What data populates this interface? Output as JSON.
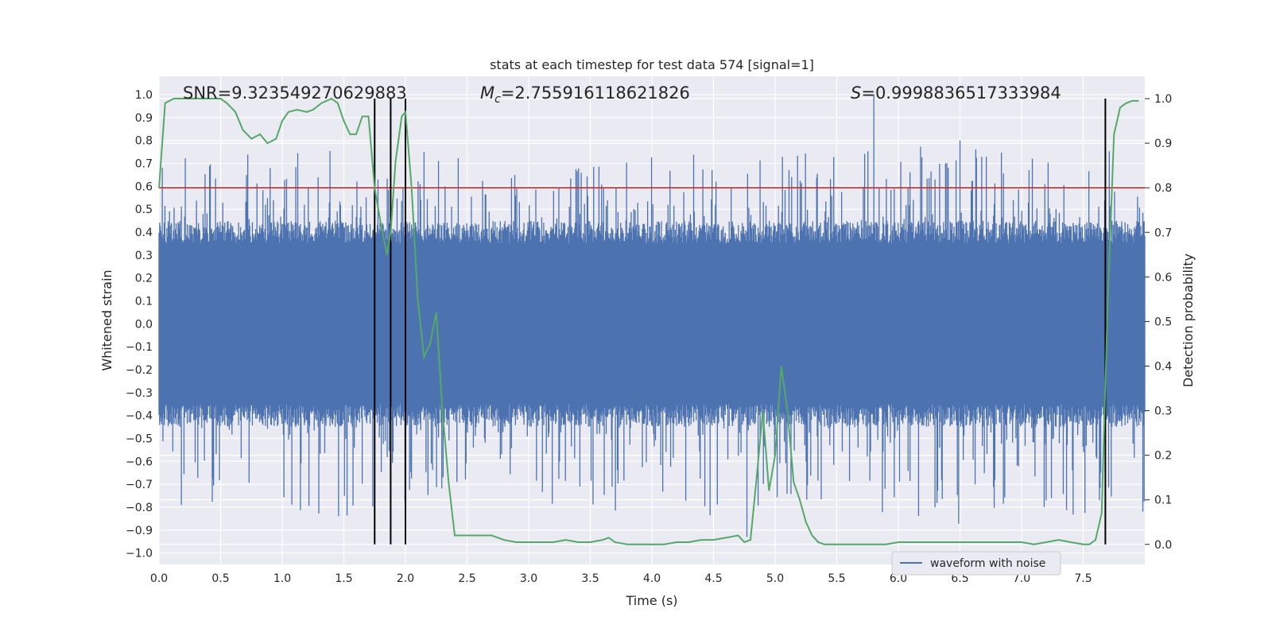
{
  "chart_data": {
    "type": "line",
    "title": "stats at each timestep for test data 574 [signal=1]",
    "xlabel": "Time (s)",
    "ylabel": "Whitened strain",
    "y2label": "Detection probability",
    "xlim": [
      0,
      8
    ],
    "ylim": [
      -1.05,
      1.08
    ],
    "y2lim": [
      -0.045,
      1.05
    ],
    "xticks": [
      "0.0",
      "0.5",
      "1.0",
      "1.5",
      "2.0",
      "2.5",
      "3.0",
      "3.5",
      "4.0",
      "4.5",
      "5.0",
      "5.5",
      "6.0",
      "6.5",
      "7.0",
      "7.5"
    ],
    "yticks": [
      "1.0",
      "0.9",
      "0.8",
      "0.7",
      "0.6",
      "0.5",
      "0.4",
      "0.3",
      "0.2",
      "0.1",
      "0.0",
      "−0.1",
      "−0.2",
      "−0.3",
      "−0.4",
      "−0.5",
      "−0.6",
      "−0.7",
      "−0.8",
      "−0.9",
      "−1.0"
    ],
    "y2ticks": [
      "1.0",
      "0.9",
      "0.8",
      "0.7",
      "0.6",
      "0.5",
      "0.4",
      "0.3",
      "0.2",
      "0.1",
      "0.0"
    ],
    "annotations": {
      "snr": "SNR=9.323549270629883",
      "mc_symbol": "M",
      "mc_sub": "c",
      "mc_value": "=2.755916118621826",
      "s_symbol": "S",
      "s_value": "=0.9998836517333984"
    },
    "legend": {
      "position": "lower-right",
      "label": "waveform with noise"
    },
    "threshold": {
      "value": 0.8,
      "axis": "right",
      "color": "#d62728"
    },
    "vertical_markers": [
      1.75,
      1.88,
      2.0,
      7.68
    ],
    "waveform": {
      "name": "waveform with noise",
      "color": "#4c72b0",
      "duration": 8,
      "typical_envelope": 0.45,
      "max_peak": 1.0,
      "min_peak": -0.93
    },
    "probability_series": {
      "color": "#55a868",
      "x": [
        0.0,
        0.05,
        0.12,
        0.2,
        0.3,
        0.4,
        0.5,
        0.55,
        0.62,
        0.68,
        0.75,
        0.82,
        0.88,
        0.95,
        1.0,
        1.05,
        1.12,
        1.2,
        1.25,
        1.32,
        1.4,
        1.45,
        1.5,
        1.55,
        1.6,
        1.65,
        1.7,
        1.75,
        1.8,
        1.85,
        1.88,
        1.92,
        1.97,
        2.0,
        2.05,
        2.1,
        2.15,
        2.2,
        2.25,
        2.3,
        2.35,
        2.4,
        2.45,
        2.55,
        2.65,
        2.7,
        2.8,
        2.9,
        3.0,
        3.1,
        3.2,
        3.3,
        3.4,
        3.5,
        3.6,
        3.65,
        3.7,
        3.8,
        3.9,
        4.0,
        4.1,
        4.2,
        4.3,
        4.4,
        4.5,
        4.6,
        4.7,
        4.75,
        4.8,
        4.85,
        4.9,
        4.95,
        5.0,
        5.05,
        5.1,
        5.15,
        5.2,
        5.25,
        5.3,
        5.35,
        5.4,
        5.5,
        5.6,
        5.7,
        5.8,
        5.9,
        6.0,
        6.2,
        6.4,
        6.6,
        6.8,
        7.0,
        7.1,
        7.2,
        7.3,
        7.4,
        7.5,
        7.55,
        7.6,
        7.65,
        7.7,
        7.75,
        7.8,
        7.85,
        7.9,
        7.95
      ],
      "y": [
        0.8,
        0.99,
        1.0,
        1.0,
        1.0,
        1.0,
        1.0,
        0.99,
        0.97,
        0.93,
        0.91,
        0.92,
        0.9,
        0.91,
        0.95,
        0.97,
        0.975,
        0.97,
        0.975,
        0.99,
        1.0,
        0.99,
        0.95,
        0.92,
        0.92,
        0.96,
        0.96,
        0.8,
        0.72,
        0.65,
        0.7,
        0.86,
        0.96,
        0.97,
        0.8,
        0.55,
        0.42,
        0.45,
        0.52,
        0.3,
        0.14,
        0.02,
        0.02,
        0.02,
        0.02,
        0.02,
        0.01,
        0.005,
        0.005,
        0.005,
        0.005,
        0.01,
        0.005,
        0.005,
        0.01,
        0.015,
        0.005,
        0.0,
        0.0,
        0.0,
        0.0,
        0.005,
        0.005,
        0.01,
        0.01,
        0.015,
        0.02,
        0.005,
        0.01,
        0.15,
        0.3,
        0.12,
        0.2,
        0.4,
        0.3,
        0.14,
        0.1,
        0.05,
        0.02,
        0.005,
        0.0,
        0.0,
        0.0,
        0.0,
        0.0,
        0.0,
        0.005,
        0.005,
        0.005,
        0.005,
        0.005,
        0.005,
        0.0,
        0.005,
        0.01,
        0.005,
        0.0,
        0.0,
        0.01,
        0.07,
        0.55,
        0.92,
        0.98,
        0.99,
        0.995,
        0.995
      ]
    }
  }
}
